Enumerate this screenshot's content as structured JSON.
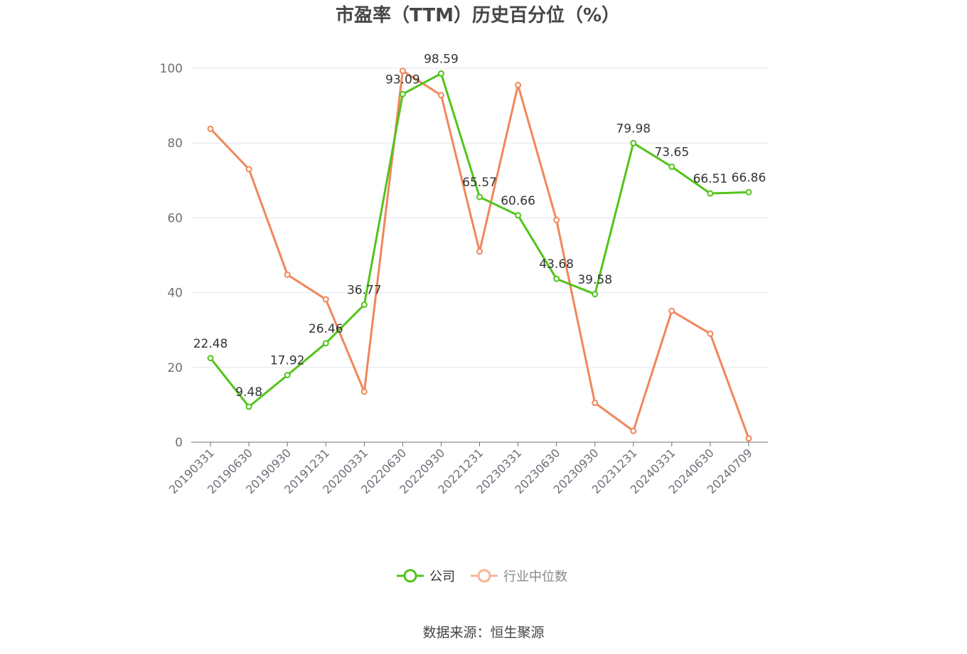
{
  "chart_data": {
    "type": "line",
    "title": "市盈率（TTM）历史百分位（%）",
    "xlabel": "",
    "ylabel": "",
    "ylim": [
      0,
      100
    ],
    "yticks": [
      0,
      20,
      40,
      60,
      80,
      100
    ],
    "grid": true,
    "legend_position": "bottom-center",
    "categories": [
      "20190331",
      "20190630",
      "20190930",
      "20191231",
      "20200331",
      "20220630",
      "20220930",
      "20221231",
      "20230331",
      "20230630",
      "20230930",
      "20231231",
      "20240331",
      "20240630",
      "20240709"
    ],
    "series": [
      {
        "name": "公司",
        "color": "#52c41a",
        "show_labels": true,
        "values": [
          22.48,
          9.48,
          17.92,
          26.46,
          36.77,
          93.09,
          98.59,
          65.57,
          60.66,
          43.68,
          39.58,
          79.98,
          73.65,
          66.51,
          66.86
        ]
      },
      {
        "name": "行业中位数",
        "color": "#f0875a",
        "show_labels": false,
        "values": [
          83.8,
          73.0,
          44.8,
          38.2,
          13.5,
          99.3,
          92.8,
          51.0,
          95.5,
          59.4,
          10.5,
          3.0,
          35.1,
          29.0,
          1.0
        ]
      }
    ]
  },
  "source": "数据来源：恒生聚源"
}
